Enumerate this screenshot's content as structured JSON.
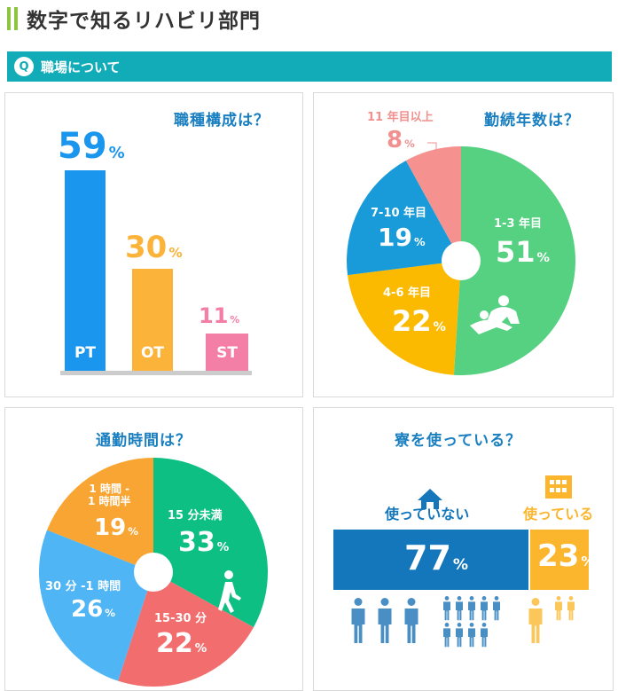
{
  "page": {
    "title": "数字で知るリハビリ部門"
  },
  "section": {
    "badge": "Q",
    "label": "職場について"
  },
  "colors": {
    "green": "#4fcf80",
    "blue": "#1a97dd",
    "orange": "#f8ad35",
    "pink": "#f6869b",
    "salmon": "#f0918f",
    "teal": "#12acb9",
    "title": "#1a7fc1",
    "yellow": "#fbb62e",
    "dark_blue": "#1477bb"
  },
  "chart_data": [
    {
      "type": "bar",
      "title": "職種構成は？",
      "categories": [
        "PT",
        "OT",
        "ST"
      ],
      "values": [
        59,
        30,
        11
      ],
      "unit": "%",
      "ylim": [
        0,
        59
      ],
      "colors": [
        "#1b96ee",
        "#fbb33a",
        "#f47fa6"
      ]
    },
    {
      "type": "pie",
      "title": "勤続年数は？",
      "slices": [
        {
          "label": "1-3 年目",
          "value": 51,
          "color": "#55d181"
        },
        {
          "label": "4-6 年目",
          "value": 22,
          "color": "#fbba00"
        },
        {
          "label": "7-10 年目",
          "value": 19,
          "color": "#189bd8"
        },
        {
          "label": "11 年目以上",
          "value": 8,
          "color": "#f5928f"
        }
      ],
      "unit": "%"
    },
    {
      "type": "pie",
      "title": "通勤時間は？",
      "slices": [
        {
          "label": "15 分未満",
          "value": 33,
          "color": "#0dbf83"
        },
        {
          "label": "15-30 分",
          "value": 22,
          "color": "#f26e6e"
        },
        {
          "label": "30 分 -1 時間",
          "value": 26,
          "color": "#4fb5f5"
        },
        {
          "label": "1 時間 - 1 時間半",
          "value": 19,
          "color": "#f8a533"
        }
      ],
      "unit": "%"
    },
    {
      "type": "bar",
      "title": "寮を使っている？",
      "categories": [
        "使っていない",
        "使っている"
      ],
      "values": [
        77,
        23
      ],
      "unit": "%",
      "colors": [
        "#1477bb",
        "#fbb62e"
      ]
    }
  ],
  "labels": {
    "ot_line1": "1 時間 -",
    "ot_line2": "1 時間半"
  }
}
